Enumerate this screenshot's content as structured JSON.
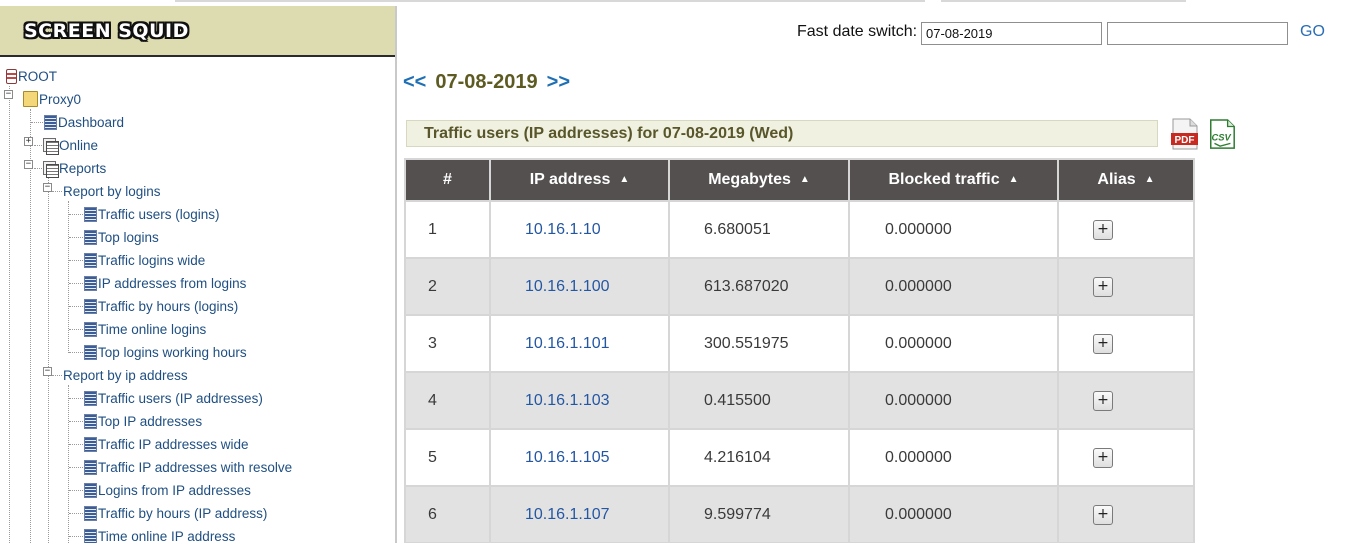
{
  "app": {
    "logo_text": "SCREEN SQUID"
  },
  "tree": {
    "root": "ROOT",
    "proxy": "Proxy0",
    "dashboard": "Dashboard",
    "online": "Online",
    "reports": "Reports",
    "report_by_logins": "Report by logins",
    "logins_items": [
      "Traffic users (logins)",
      "Top logins",
      "Traffic logins wide",
      "IP addresses from logins",
      "Traffic by hours (logins)",
      "Time online logins",
      "Top logins working hours"
    ],
    "report_by_ip": "Report by ip address",
    "ip_items": [
      "Traffic users (IP addresses)",
      "Top IP addresses",
      "Traffic IP addresses wide",
      "Traffic IP addresses with resolve",
      "Logins from IP addresses",
      "Traffic by hours (IP address)",
      "Time online IP address"
    ]
  },
  "header": {
    "fast_date_label": "Fast date switch:",
    "date_input_value": "07-08-2019",
    "date_input2_value": "",
    "go_label": "GO"
  },
  "nav": {
    "prev": "<<",
    "date": "07-08-2019",
    "next": ">>"
  },
  "report": {
    "title": "Traffic users (IP addresses) for 07-08-2019 (Wed)",
    "pdf_label": "PDF",
    "csv_label": "CSV"
  },
  "table": {
    "headers": [
      "#",
      "IP address",
      "Megabytes",
      "Blocked traffic",
      "Alias"
    ],
    "sort_glyph": "▲",
    "alias_button": "+",
    "rows": [
      {
        "n": "1",
        "ip": "10.16.1.10",
        "mb": "6.680051",
        "blocked": "0.000000"
      },
      {
        "n": "2",
        "ip": "10.16.1.100",
        "mb": "613.687020",
        "blocked": "0.000000"
      },
      {
        "n": "3",
        "ip": "10.16.1.101",
        "mb": "300.551975",
        "blocked": "0.000000"
      },
      {
        "n": "4",
        "ip": "10.16.1.103",
        "mb": "0.415500",
        "blocked": "0.000000"
      },
      {
        "n": "5",
        "ip": "10.16.1.105",
        "mb": "4.216104",
        "blocked": "0.000000"
      },
      {
        "n": "6",
        "ip": "10.16.1.107",
        "mb": "9.599774",
        "blocked": "0.000000"
      }
    ]
  },
  "colors": {
    "accent_link": "#1f4f82",
    "table_header": "#555050",
    "logo_bar": "#dcdcb0"
  }
}
